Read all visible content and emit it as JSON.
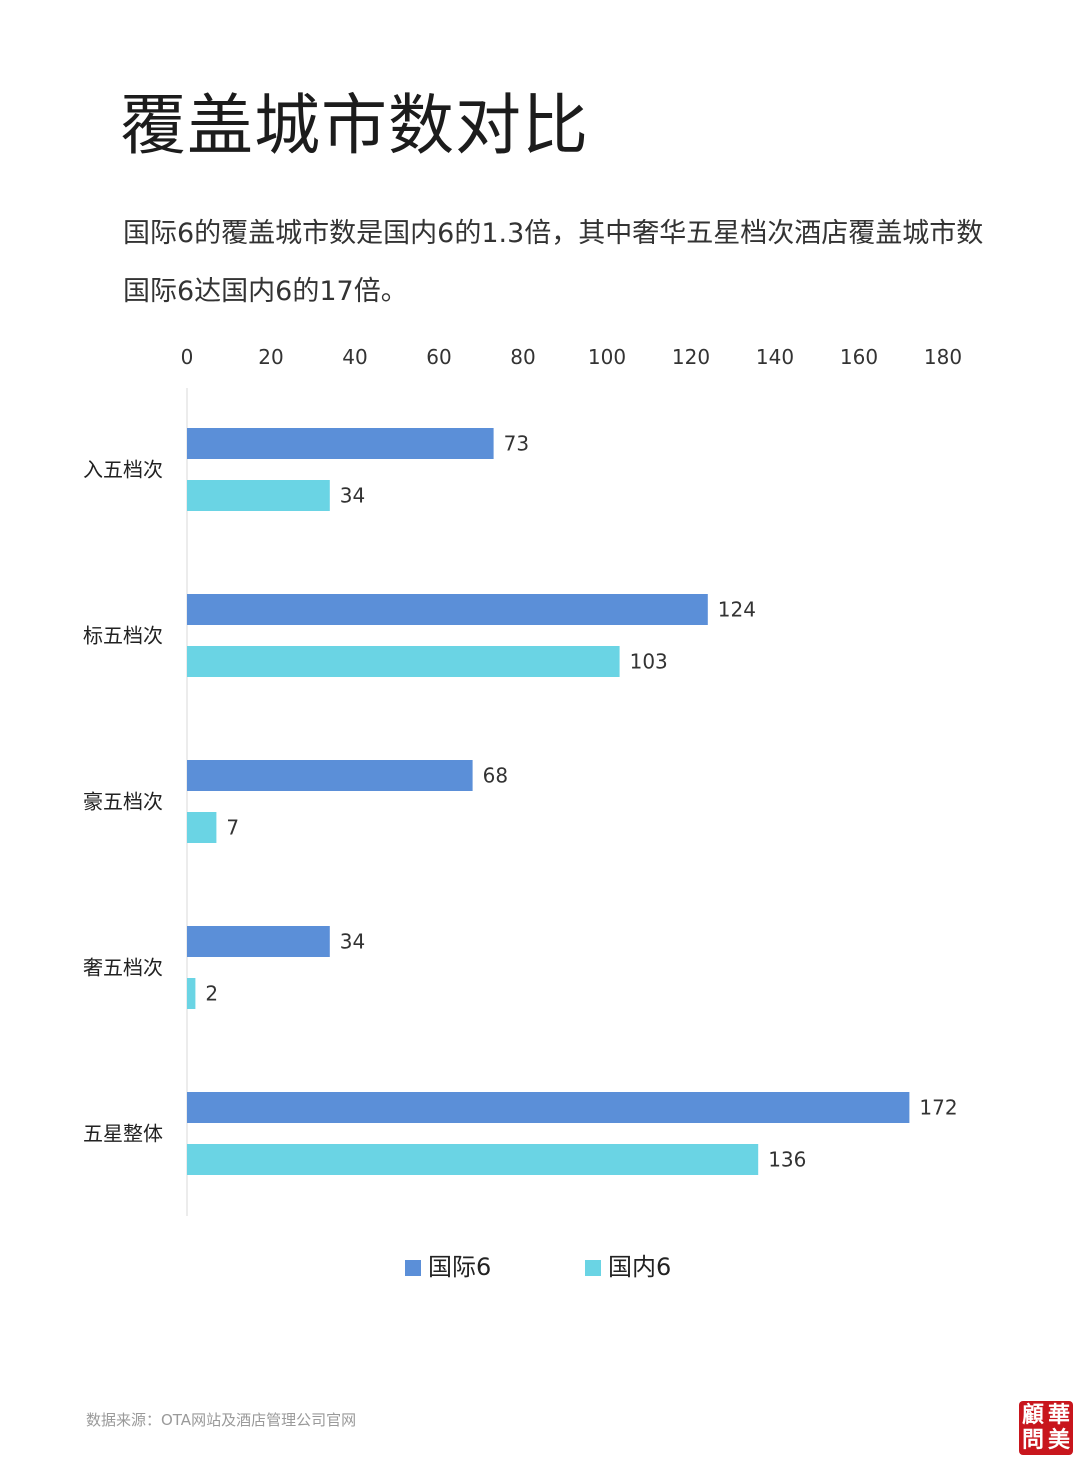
{
  "title": "覆盖城市数对比",
  "subtitle": "国际6的覆盖城市数是国内6的1.3倍，其中奢华五星档次酒店覆盖城市数国际6达国内6的17倍。",
  "source": "数据来源：OTA网站及酒店管理公司官网",
  "logo_text": [
    "華",
    "美",
    "顧",
    "問"
  ],
  "chart_data": {
    "type": "bar",
    "orientation": "horizontal",
    "categories": [
      "入五档次",
      "标五档次",
      "豪五档次",
      "奢五档次",
      "五星整体"
    ],
    "series": [
      {
        "name": "国际6",
        "values": [
          73,
          124,
          68,
          34,
          172
        ],
        "color": "#5b8fd8"
      },
      {
        "name": "国内6",
        "values": [
          34,
          103,
          7,
          2,
          136
        ],
        "color": "#6ad4e4"
      }
    ],
    "xlim": [
      0,
      180
    ],
    "xticks": [
      0,
      20,
      40,
      60,
      80,
      100,
      120,
      140,
      160,
      180
    ],
    "axis_position": "top",
    "grid": false,
    "legend_position": "bottom"
  }
}
